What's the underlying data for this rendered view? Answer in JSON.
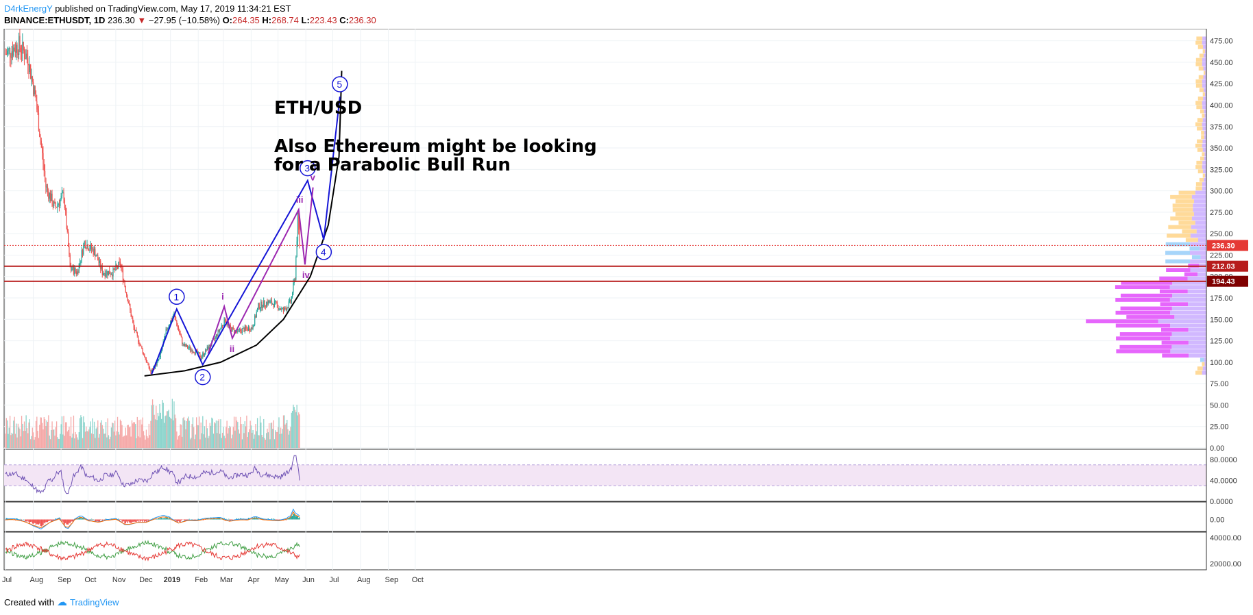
{
  "header": {
    "author": "D4rkEnergY",
    "published": "published on TradingView.com, May 17, 2019 11:34:21 EST",
    "symbol": "BINANCE:ETHUSDT, 1D",
    "last": "236.30",
    "change": "−27.95 (−10.58%)",
    "o_label": "O:",
    "o": "264.35",
    "h_label": "H:",
    "h": "268.74",
    "l_label": "L:",
    "l": "223.43",
    "c_label": "C:",
    "c": "236.30"
  },
  "annotation": {
    "title": "ETH/USD",
    "line1": "Also Ethereum might be looking",
    "line2": "for a Parabolic Bull Run"
  },
  "footer": {
    "created": "Created with",
    "brand": "TradingView"
  },
  "colors": {
    "up": "#26a69a",
    "down": "#ef5350",
    "wave_major": "#1414d6",
    "wave_minor": "#9c27b0",
    "resistance": "#b71c1c",
    "rsi": "#6f52b4",
    "macd": "#2196f3",
    "signal": "#ff6d00"
  },
  "chart_data": {
    "type": "candlestick",
    "timeframe": "1D",
    "y_ticks": [
      "475.00",
      "450.00",
      "425.00",
      "400.00",
      "375.00",
      "350.00",
      "325.00",
      "300.00",
      "275.00",
      "250.00",
      "225.00",
      "200.00",
      "175.00",
      "150.00",
      "125.00",
      "100.00",
      "75.00",
      "50.00",
      "25.00",
      "0.00"
    ],
    "x_ticks": [
      "Jul",
      "Aug",
      "Sep",
      "Oct",
      "Nov",
      "Dec",
      "2019",
      "Feb",
      "Mar",
      "Apr",
      "May",
      "Jun",
      "Jul",
      "Aug",
      "Sep",
      "Oct"
    ],
    "price_labels": [
      {
        "value": 236.3,
        "text": "236.30",
        "color": "#e53935"
      },
      {
        "value": 212.03,
        "text": "212.03",
        "color": "#b71c1c"
      },
      {
        "value": 194.43,
        "text": "194.43",
        "color": "#7f0000"
      }
    ],
    "horizontal_lines": [
      212.03,
      194.43
    ],
    "current_price": 236.3,
    "ohlc_anchors": [
      {
        "d": 0,
        "p": 460
      },
      {
        "d": 15,
        "p": 470
      },
      {
        "d": 25,
        "p": 455
      },
      {
        "d": 34,
        "p": 405
      },
      {
        "d": 45,
        "p": 305
      },
      {
        "d": 55,
        "p": 280
      },
      {
        "d": 65,
        "p": 295
      },
      {
        "d": 72,
        "p": 210
      },
      {
        "d": 80,
        "p": 205
      },
      {
        "d": 88,
        "p": 240
      },
      {
        "d": 100,
        "p": 228
      },
      {
        "d": 108,
        "p": 205
      },
      {
        "d": 120,
        "p": 205
      },
      {
        "d": 128,
        "p": 215
      },
      {
        "d": 135,
        "p": 180
      },
      {
        "d": 143,
        "p": 140
      },
      {
        "d": 152,
        "p": 115
      },
      {
        "d": 162,
        "p": 88
      },
      {
        "d": 172,
        "p": 105
      },
      {
        "d": 180,
        "p": 140
      },
      {
        "d": 188,
        "p": 155
      },
      {
        "d": 198,
        "p": 120
      },
      {
        "d": 212,
        "p": 112
      },
      {
        "d": 218,
        "p": 106
      },
      {
        "d": 232,
        "p": 125
      },
      {
        "d": 245,
        "p": 150
      },
      {
        "d": 250,
        "p": 140
      },
      {
        "d": 258,
        "p": 135
      },
      {
        "d": 265,
        "p": 138
      },
      {
        "d": 275,
        "p": 140
      },
      {
        "d": 282,
        "p": 165
      },
      {
        "d": 292,
        "p": 170
      },
      {
        "d": 300,
        "p": 168
      },
      {
        "d": 310,
        "p": 160
      },
      {
        "d": 318,
        "p": 170
      },
      {
        "d": 323,
        "p": 200
      },
      {
        "d": 326,
        "p": 268
      },
      {
        "d": 328,
        "p": 236
      }
    ],
    "waves_major": [
      {
        "label": "1",
        "d": 191,
        "p": 162
      },
      {
        "label": "2",
        "d": 220,
        "p": 97
      },
      {
        "label": "3",
        "d": 337,
        "p": 312
      },
      {
        "label": "4",
        "d": 355,
        "p": 243
      },
      {
        "label": "5",
        "d": 373,
        "p": 410
      }
    ],
    "wave_major_start": {
      "d": 163,
      "p": 86
    },
    "waves_minor": [
      {
        "label": "i",
        "d": 244,
        "p": 165
      },
      {
        "label": "ii",
        "d": 253,
        "p": 128
      },
      {
        "label": "iii",
        "d": 327,
        "p": 278
      },
      {
        "label": "iv",
        "d": 334,
        "p": 214
      },
      {
        "label": "v",
        "d": 343,
        "p": 304
      }
    ],
    "wave_minor_start": {
      "d": 226,
      "p": 110
    },
    "parabola": [
      {
        "d": 155,
        "p": 84
      },
      {
        "d": 200,
        "p": 90
      },
      {
        "d": 240,
        "p": 100
      },
      {
        "d": 280,
        "p": 120
      },
      {
        "d": 310,
        "p": 150
      },
      {
        "d": 340,
        "p": 200
      },
      {
        "d": 360,
        "p": 260
      },
      {
        "d": 372,
        "p": 340
      },
      {
        "d": 375,
        "p": 440
      }
    ],
    "rsi": {
      "ticks": [
        "80.0000",
        "40.0000",
        "0.0000"
      ],
      "band": [
        70,
        30
      ]
    },
    "macd": {
      "ticks": [
        "0.00"
      ]
    },
    "osc": {
      "ticks": [
        "40000.00",
        "20000.00"
      ]
    }
  }
}
